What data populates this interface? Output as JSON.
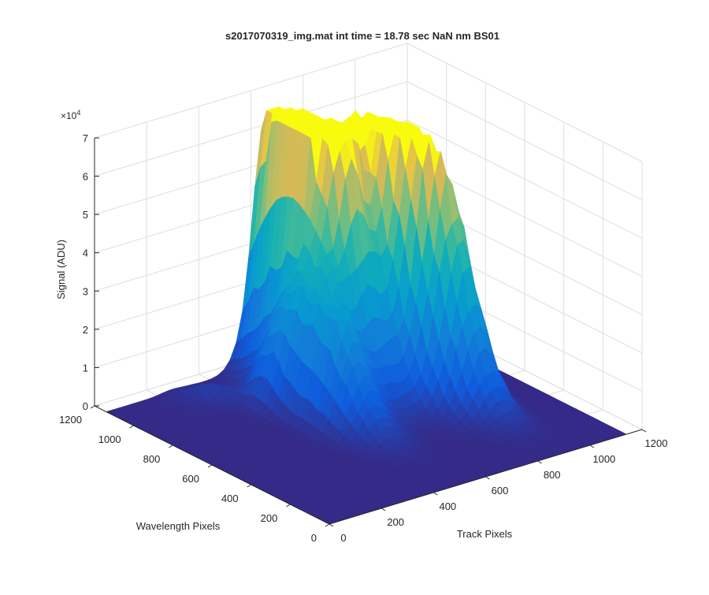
{
  "chart_data": {
    "type": "surface",
    "title": "s2017070319_img.mat int time = 18.78 sec  NaN nm BS01",
    "xlabel": "Track Pixels",
    "ylabel": "Wavelength Pixels",
    "zlabel": "Signal (ADU)",
    "z_exponent_label": "×10",
    "z_exponent_power": "4",
    "x_ticks": [
      "0",
      "200",
      "400",
      "600",
      "800",
      "1000",
      "1200"
    ],
    "y_ticks": [
      "0",
      "200",
      "400",
      "600",
      "800",
      "1000",
      "1200"
    ],
    "z_ticks": [
      "0",
      "1",
      "2",
      "3",
      "4",
      "5",
      "6",
      "7"
    ],
    "xlim": [
      0,
      1200
    ],
    "ylim": [
      0,
      1200
    ],
    "zlim": [
      0,
      70000
    ],
    "grid": true,
    "colormap": "parula",
    "colors": {
      "low": "#352a87",
      "mid_low": "#0f5cdd",
      "mid": "#1ab5b4",
      "mid_high": "#a8bd5f",
      "high": "#f9fb0e",
      "background_surface": "#352a87"
    },
    "peaks": [
      {
        "track": 500,
        "wavelength": 700,
        "height": 28000
      },
      {
        "track": 610,
        "wavelength": 1000,
        "height": 56000
      },
      {
        "track": 660,
        "wavelength": 900,
        "height": 52000
      },
      {
        "track": 800,
        "wavelength": 820,
        "height": 61000
      },
      {
        "track": 880,
        "wavelength": 640,
        "height": 48000
      },
      {
        "track": 420,
        "wavelength": 850,
        "height": 9000
      },
      {
        "track": 320,
        "wavelength": 1000,
        "height": 3000
      },
      {
        "track": 250,
        "wavelength": 1050,
        "height": 1500
      }
    ]
  }
}
